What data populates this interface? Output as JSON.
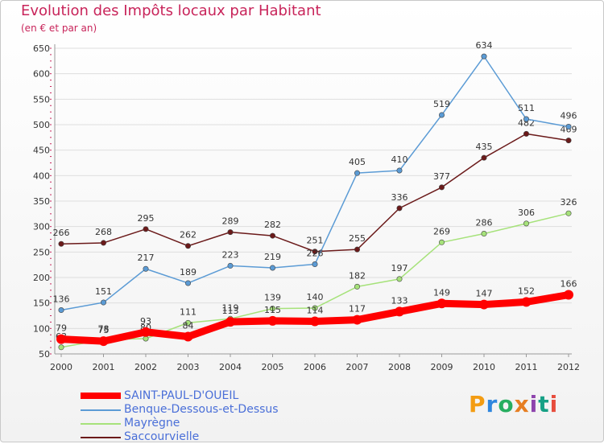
{
  "title": "Evolution des Impôts locaux par Habitant",
  "subtitle": "(en € et par an)",
  "logo": {
    "text": "Proxiti",
    "colors": [
      "#f39c12",
      "#2e86de",
      "#27ae60",
      "#e67e22",
      "#8e44ad",
      "#16a085",
      "#e74c3c"
    ]
  },
  "chart_data": {
    "type": "line",
    "x": [
      "2000",
      "2001",
      "2002",
      "2003",
      "2004",
      "2005",
      "2006",
      "2007",
      "2008",
      "2009",
      "2010",
      "2011",
      "2012"
    ],
    "ylim": [
      50,
      650
    ],
    "yticks": [
      50,
      100,
      150,
      200,
      250,
      300,
      350,
      400,
      450,
      500,
      550,
      600,
      650
    ],
    "grid": true,
    "legend_position": "bottom-left",
    "series": [
      {
        "name": "SAINT-PAUL-D'OUEIL",
        "color": "#ff0000",
        "values": [
          79,
          75,
          93,
          84,
          113,
          115,
          114,
          117,
          133,
          149,
          147,
          152,
          166
        ],
        "labels": [
          "79",
          "75",
          "93",
          "84",
          "113",
          "115",
          "114",
          "117",
          "133",
          "149",
          "147",
          "152",
          "166"
        ]
      },
      {
        "name": "Benque-Dessous-et-Dessus",
        "color": "#5b9bd5",
        "values": [
          136,
          151,
          217,
          189,
          223,
          219,
          226,
          405,
          410,
          519,
          634,
          511,
          496
        ],
        "labels": [
          "136",
          "151",
          "217",
          "189",
          "223",
          "219",
          "226",
          "405",
          "410",
          "519",
          "634",
          "511",
          "496"
        ]
      },
      {
        "name": "Mayrègne",
        "color": "#a6e27a",
        "values": [
          63,
          78,
          80,
          111,
          119,
          139,
          140,
          182,
          197,
          269,
          286,
          306,
          326
        ],
        "labels": [
          "63",
          "78",
          "80",
          "111",
          "119",
          "139",
          "140",
          "182",
          "197",
          "269",
          "286",
          "306",
          "326"
        ]
      },
      {
        "name": "Saccourvielle",
        "color": "#6b1a1a",
        "values": [
          266,
          268,
          295,
          262,
          289,
          282,
          251,
          255,
          336,
          377,
          435,
          482,
          469
        ],
        "labels": [
          "266",
          "268",
          "295",
          "262",
          "289",
          "282",
          "251",
          "255",
          "336",
          "377",
          "435",
          "482",
          "469"
        ]
      }
    ]
  }
}
